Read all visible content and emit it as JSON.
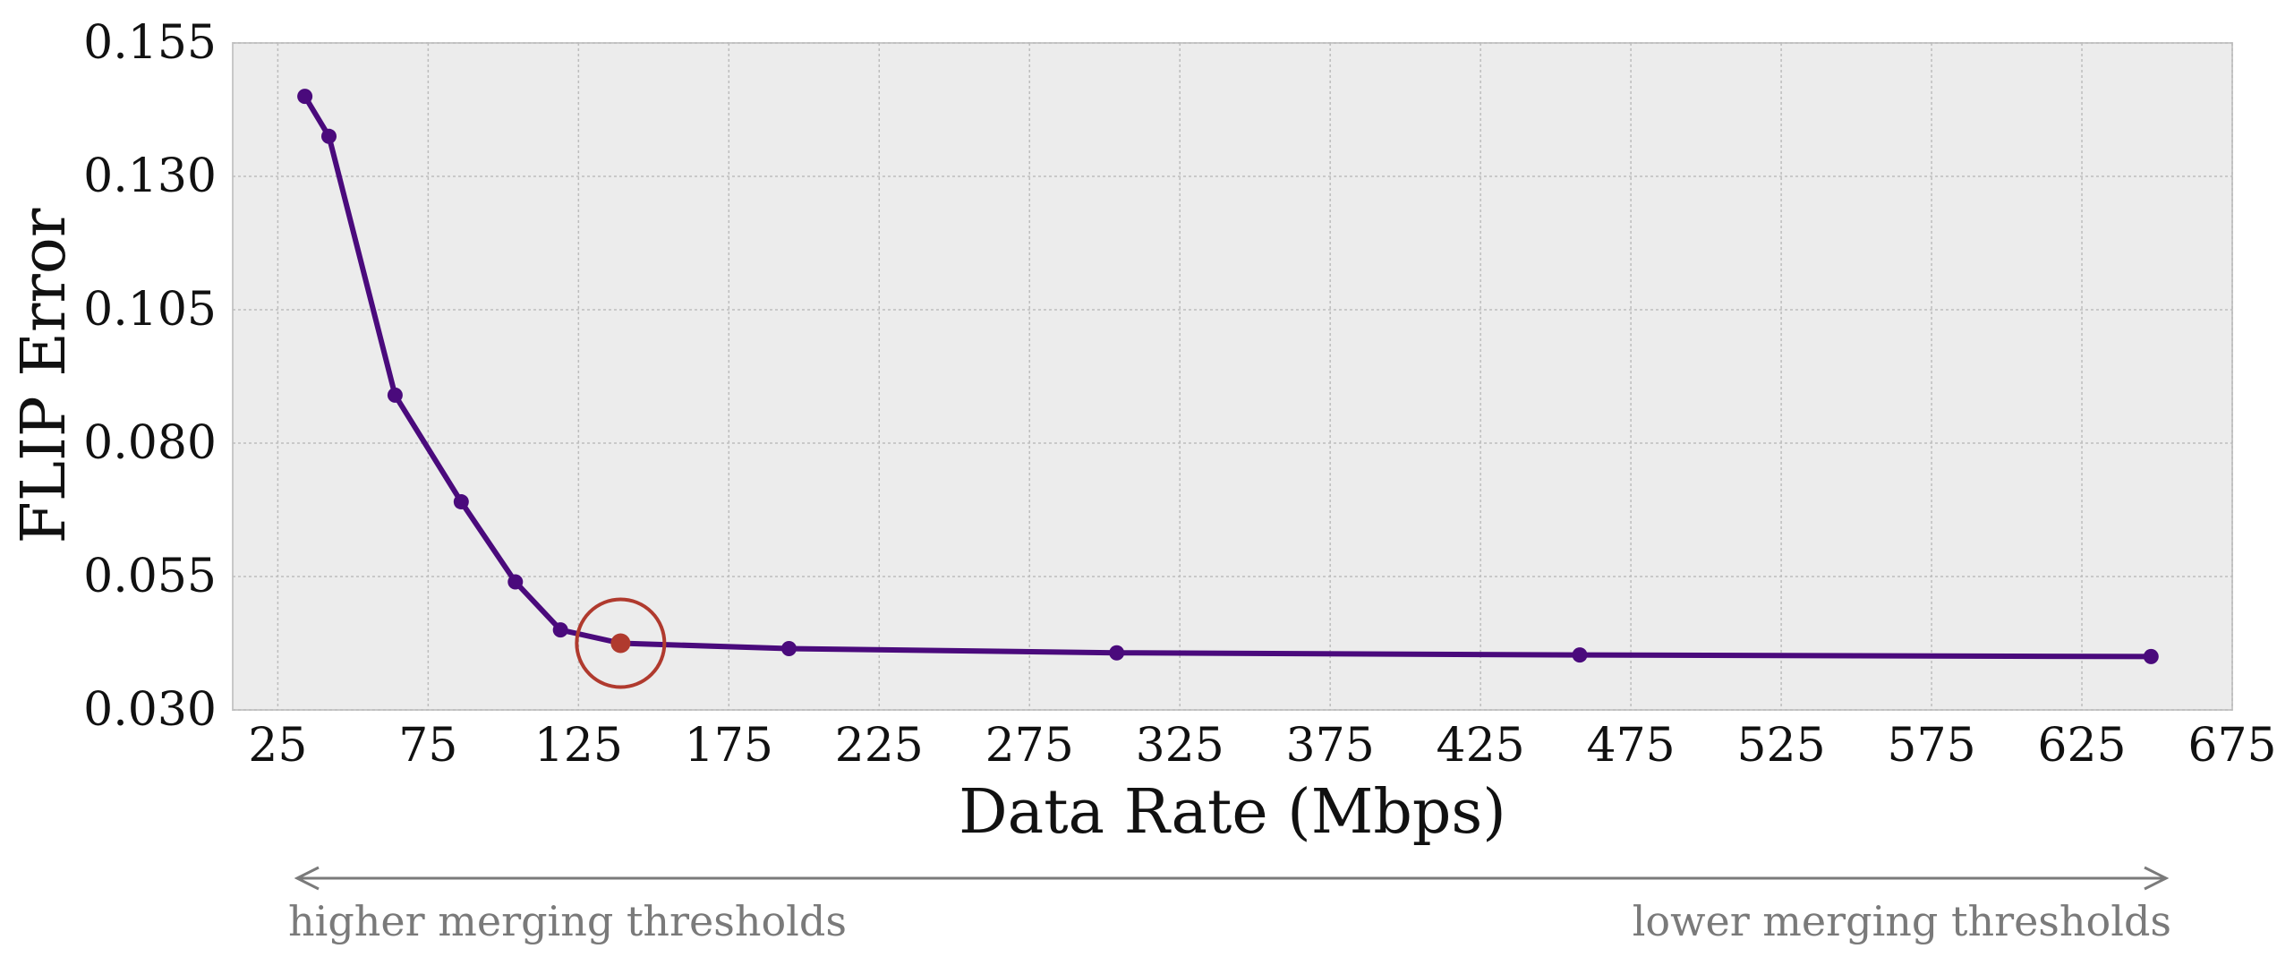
{
  "chart_data": {
    "type": "line",
    "title": "",
    "xlabel": "Data Rate (Mbps)",
    "ylabel": "FLIP Error",
    "xlim": [
      10,
      675
    ],
    "ylim": [
      0.03,
      0.155
    ],
    "x_ticks": [
      25,
      75,
      125,
      175,
      225,
      275,
      325,
      375,
      425,
      475,
      525,
      575,
      625,
      675
    ],
    "y_ticks": [
      0.03,
      0.055,
      0.08,
      0.105,
      0.13,
      0.155
    ],
    "y_tick_labels": [
      "0.030",
      "0.055",
      "0.080",
      "0.105",
      "0.130",
      "0.155"
    ],
    "grid": true,
    "series": [
      {
        "x": [
          34,
          42,
          64,
          86,
          104,
          119,
          139,
          195,
          304,
          458,
          648
        ],
        "y": [
          0.145,
          0.1375,
          0.089,
          0.069,
          0.054,
          0.045,
          0.0425,
          0.0415,
          0.0407,
          0.0403,
          0.04
        ],
        "color": "#4a0a7c"
      }
    ],
    "highlight": {
      "x": 139,
      "y": 0.0425,
      "color": "#b03a2e"
    },
    "annotations": {
      "left": "higher merging thresholds",
      "right": "lower merging thresholds"
    },
    "colors": {
      "line": "#4a0a7c",
      "highlight": "#b03a2e",
      "plot_bg": "#ececec",
      "grid": "#bdbdbd",
      "annotation": "#7a7a7a"
    }
  }
}
